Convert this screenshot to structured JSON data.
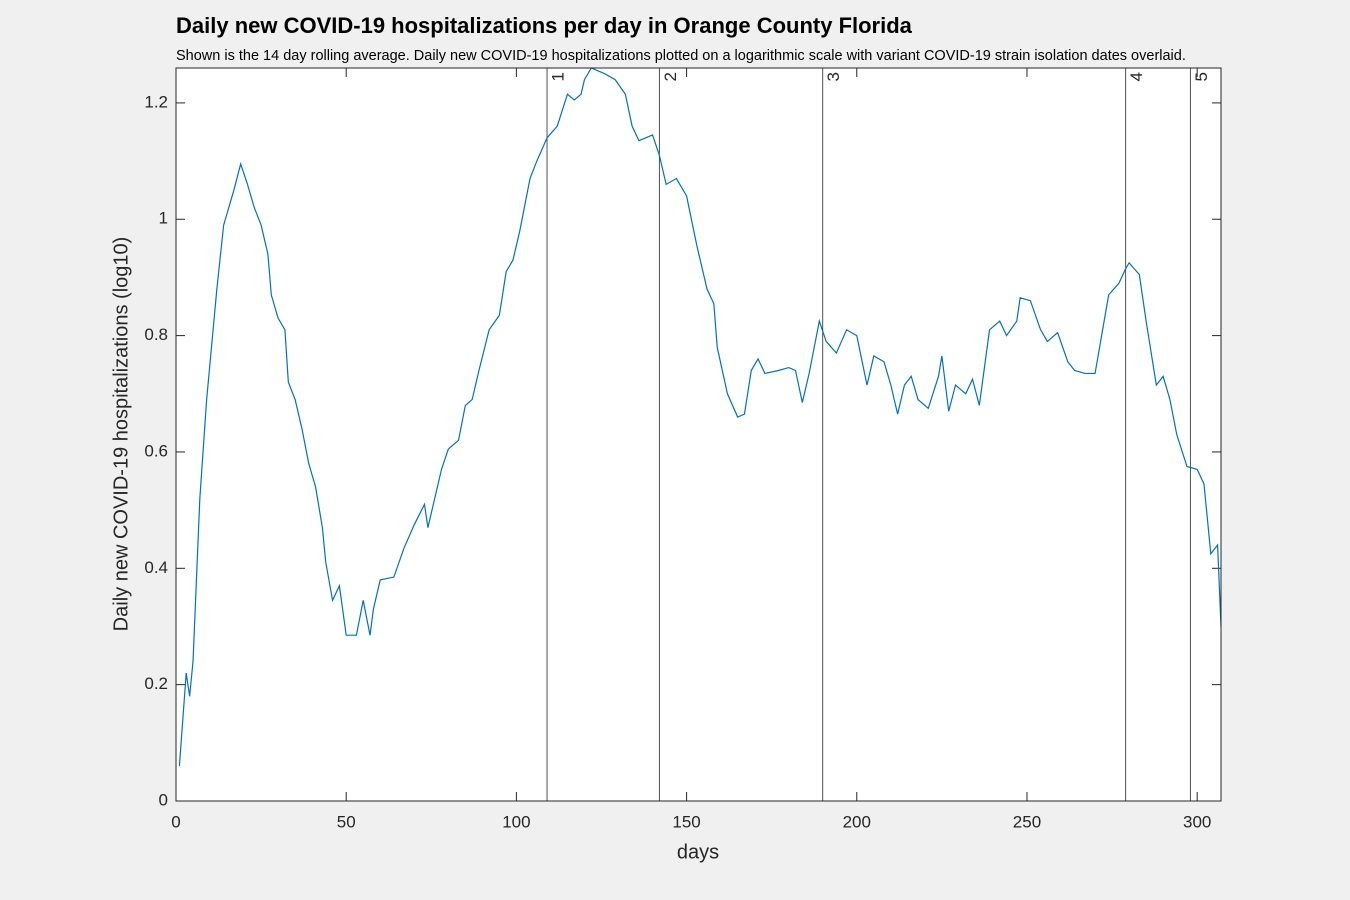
{
  "chart_data": {
    "type": "line",
    "title": "Daily new COVID-19 hospitalizations per day in Orange County Florida",
    "subtitle": "Shown is the 14 day rolling average. Daily new COVID-19 hospitalizations plotted on a logarithmic scale with variant COVID-19 strain isolation dates overlaid.",
    "x_label": "days",
    "y_label": "Daily new COVID-19 hospitalizations (log10)",
    "xlim": [
      0,
      307
    ],
    "ylim": [
      0,
      1.26
    ],
    "xticks": [
      0,
      50,
      100,
      150,
      200,
      250,
      300
    ],
    "yticks": [
      0,
      0.2,
      0.4,
      0.6,
      0.8,
      1,
      1.2
    ],
    "color": "#0072bd",
    "x": [
      1,
      3,
      4,
      5,
      7,
      9,
      12,
      14,
      17,
      19,
      21,
      23,
      25,
      27,
      28,
      30,
      32,
      33,
      35,
      37,
      39,
      41,
      43,
      44,
      46,
      48,
      50,
      53,
      55,
      57,
      58,
      60,
      64,
      67,
      70,
      73,
      74,
      78,
      80,
      83,
      85,
      87,
      89,
      92,
      95,
      97,
      99,
      101,
      104,
      106,
      109,
      112,
      115,
      117,
      119,
      120,
      122,
      126,
      129,
      132,
      134,
      136,
      140,
      142,
      144,
      147,
      150,
      153,
      156,
      158,
      159,
      162,
      165,
      167,
      169,
      171,
      173,
      177,
      180,
      182,
      184,
      186,
      189,
      191,
      194,
      197,
      200,
      203,
      205,
      208,
      210,
      212,
      214,
      216,
      218,
      221,
      224,
      225,
      227,
      229,
      232,
      234,
      236,
      239,
      242,
      244,
      247,
      248,
      251,
      254,
      256,
      259,
      262,
      264,
      267,
      270,
      274,
      277,
      279,
      280,
      283,
      285,
      288,
      290,
      292,
      294,
      297,
      300,
      302,
      304,
      306,
      307
    ],
    "values": [
      0.06,
      0.22,
      0.18,
      0.24,
      0.52,
      0.69,
      0.88,
      0.99,
      1.05,
      1.095,
      1.06,
      1.02,
      0.99,
      0.94,
      0.87,
      0.83,
      0.81,
      0.72,
      0.69,
      0.64,
      0.58,
      0.54,
      0.47,
      0.41,
      0.345,
      0.37,
      0.285,
      0.285,
      0.345,
      0.285,
      0.33,
      0.38,
      0.385,
      0.435,
      0.475,
      0.51,
      0.47,
      0.57,
      0.605,
      0.62,
      0.68,
      0.69,
      0.74,
      0.81,
      0.835,
      0.91,
      0.93,
      0.98,
      1.07,
      1.1,
      1.14,
      1.16,
      1.215,
      1.205,
      1.215,
      1.24,
      1.26,
      1.25,
      1.24,
      1.215,
      1.16,
      1.135,
      1.145,
      1.11,
      1.06,
      1.07,
      1.04,
      0.955,
      0.88,
      0.855,
      0.78,
      0.7,
      0.66,
      0.665,
      0.74,
      0.76,
      0.735,
      0.74,
      0.745,
      0.74,
      0.685,
      0.735,
      0.825,
      0.79,
      0.77,
      0.81,
      0.8,
      0.715,
      0.765,
      0.755,
      0.715,
      0.665,
      0.715,
      0.73,
      0.69,
      0.675,
      0.73,
      0.765,
      0.67,
      0.715,
      0.7,
      0.725,
      0.68,
      0.81,
      0.825,
      0.8,
      0.825,
      0.865,
      0.86,
      0.81,
      0.79,
      0.805,
      0.755,
      0.74,
      0.735,
      0.735,
      0.87,
      0.89,
      0.915,
      0.925,
      0.905,
      0.825,
      0.715,
      0.73,
      0.69,
      0.63,
      0.575,
      0.57,
      0.545,
      0.425,
      0.44,
      0.3
    ],
    "vlines": [
      {
        "x": 109,
        "label": "1"
      },
      {
        "x": 142,
        "label": "2"
      },
      {
        "x": 190,
        "label": "3"
      },
      {
        "x": 279,
        "label": "4"
      },
      {
        "x": 298,
        "label": "5"
      }
    ]
  }
}
